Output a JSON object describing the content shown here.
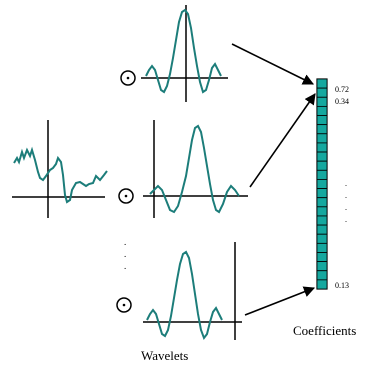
{
  "labels": {
    "wavelets": "Wavelets",
    "coefficients": "Coefficients"
  },
  "coefficient_values": {
    "first": "0.72",
    "second": "0.34",
    "last": "0.13",
    "ellipsis": "."
  },
  "vertical_ellipsis": ".",
  "colors": {
    "curve": "#1c7d7a",
    "cell_fill": "#15a89f",
    "ink": "#000000"
  },
  "icons": [
    "dot-product-icon",
    "arrow-icon"
  ],
  "coefficient_cell_count": 23
}
